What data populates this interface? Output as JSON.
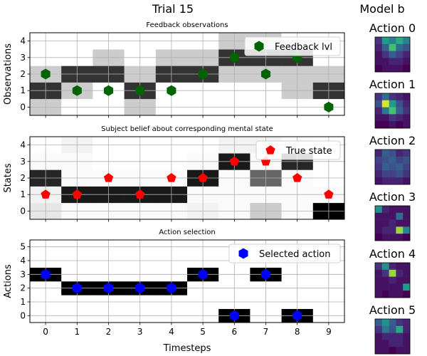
{
  "figure": {
    "title": "Trial 15",
    "side_title": "Model b"
  },
  "chart_data": [
    {
      "type": "heatmap",
      "title": "Feedback observations",
      "xlabel": "",
      "ylabel": "Observations",
      "x": [
        0,
        1,
        2,
        3,
        4,
        5,
        6,
        7,
        8,
        9
      ],
      "yticks": [
        0,
        1,
        2,
        3,
        4
      ],
      "ylim": [
        -0.5,
        4.5
      ],
      "grid": true,
      "colormap": "gray_r",
      "matrix": [
        [
          0.2,
          0.0,
          0.0,
          0.2,
          0.0,
          0.0,
          0.0,
          0.0,
          0.0,
          0.0
        ],
        [
          0.8,
          0.2,
          0.0,
          0.8,
          0.0,
          0.0,
          0.0,
          0.0,
          0.2,
          0.8
        ],
        [
          0.2,
          0.8,
          0.8,
          0.2,
          0.8,
          0.8,
          0.2,
          0.2,
          0.2,
          0.2
        ],
        [
          0.0,
          0.0,
          0.2,
          0.0,
          0.2,
          0.2,
          0.8,
          0.8,
          0.8,
          0.0
        ],
        [
          0.0,
          0.0,
          0.0,
          0.0,
          0.0,
          0.0,
          0.2,
          0.2,
          0.0,
          0.0
        ]
      ],
      "series": [
        {
          "name": "Feedback lvl",
          "marker": "hexagon",
          "color": "#006400",
          "y": [
            2,
            1,
            1,
            1,
            1,
            2,
            3,
            2,
            3,
            0
          ]
        }
      ],
      "legend_position": "upper-right"
    },
    {
      "type": "heatmap",
      "title": "Subject belief about corresponding mental state",
      "xlabel": "",
      "ylabel": "States",
      "x": [
        0,
        1,
        2,
        3,
        4,
        5,
        6,
        7,
        8,
        9
      ],
      "yticks": [
        0,
        1,
        2,
        3,
        4
      ],
      "ylim": [
        -0.5,
        4.5
      ],
      "grid": true,
      "colormap": "gray_r",
      "matrix": [
        [
          0.1,
          0.02,
          0.02,
          0.02,
          0.02,
          0.05,
          0.02,
          0.2,
          0.02,
          1.0
        ],
        [
          0.05,
          0.9,
          0.9,
          0.9,
          0.9,
          0.02,
          0.02,
          0.02,
          0.02,
          0.02
        ],
        [
          0.85,
          0.02,
          0.02,
          0.02,
          0.02,
          0.9,
          0.02,
          0.6,
          0.02,
          0.0
        ],
        [
          0.02,
          0.02,
          0.0,
          0.0,
          0.0,
          0.02,
          0.9,
          0.02,
          0.85,
          0.0
        ],
        [
          0.0,
          0.05,
          0.0,
          0.0,
          0.0,
          0.0,
          0.05,
          0.05,
          0.02,
          0.0
        ]
      ],
      "series": [
        {
          "name": "True state",
          "marker": "pentagon",
          "color": "#ff0000",
          "y": [
            1,
            1,
            2,
            1,
            2,
            2,
            3,
            3,
            2,
            1
          ]
        }
      ],
      "legend_position": "upper-right"
    },
    {
      "type": "heatmap",
      "title": "Action selection",
      "xlabel": "Timesteps",
      "ylabel": "Actions",
      "x": [
        0,
        1,
        2,
        3,
        4,
        5,
        6,
        7,
        8,
        9
      ],
      "yticks": [
        0,
        1,
        2,
        3,
        4,
        5
      ],
      "ylim": [
        -0.5,
        5.5
      ],
      "grid": true,
      "colormap": "gray_r",
      "matrix": [
        [
          0,
          0,
          0,
          0,
          0,
          0,
          1,
          0,
          1,
          0
        ],
        [
          0,
          0,
          0,
          0,
          0,
          0,
          0,
          0,
          0,
          0
        ],
        [
          0,
          1,
          1,
          1,
          1,
          0,
          0,
          0,
          0,
          0
        ],
        [
          1,
          0,
          0,
          0,
          0,
          1,
          0,
          1,
          0,
          0
        ],
        [
          0,
          0,
          0,
          0,
          0,
          0,
          0,
          0,
          0,
          0
        ],
        [
          0,
          0,
          0,
          0,
          0,
          0,
          0,
          0,
          0,
          0
        ]
      ],
      "series": [
        {
          "name": "Selected action",
          "marker": "hexagon",
          "color": "#0000ff",
          "y": [
            3,
            2,
            2,
            2,
            2,
            3,
            0,
            3,
            0,
            null
          ]
        }
      ],
      "legend_position": "upper-right"
    }
  ],
  "model_b": {
    "colormap": "viridis",
    "panels": [
      {
        "title": "Action 0",
        "matrix": [
          [
            0.15,
            0.55,
            0.45,
            0.6,
            0.45
          ],
          [
            0.1,
            0.3,
            0.7,
            0.35,
            0.25
          ],
          [
            0.05,
            0.15,
            0.3,
            0.2,
            0.1
          ],
          [
            0.05,
            0.05,
            0.1,
            0.1,
            0.05
          ],
          [
            0.0,
            0.05,
            0.05,
            0.05,
            0.0
          ]
        ]
      },
      {
        "title": "Action 1",
        "matrix": [
          [
            0.15,
            0.35,
            0.15,
            0.1,
            0.05
          ],
          [
            0.25,
            0.95,
            0.55,
            0.25,
            0.1
          ],
          [
            0.1,
            0.4,
            0.7,
            0.3,
            0.15
          ],
          [
            0.05,
            0.05,
            0.15,
            0.1,
            0.05
          ],
          [
            0.0,
            0.0,
            0.05,
            0.0,
            0.05
          ]
        ]
      },
      {
        "title": "Action 2",
        "matrix": [
          [
            0.1,
            0.3,
            0.25,
            0.1,
            0.15
          ],
          [
            0.2,
            0.25,
            0.3,
            0.2,
            0.25
          ],
          [
            0.15,
            0.3,
            0.25,
            0.3,
            0.2
          ],
          [
            0.1,
            0.2,
            0.2,
            0.25,
            0.15
          ],
          [
            0.05,
            0.1,
            0.1,
            0.1,
            0.05
          ]
        ]
      },
      {
        "title": "Action 3",
        "matrix": [
          [
            0.5,
            0.1,
            0.05,
            0.05,
            0.05
          ],
          [
            0.05,
            0.05,
            0.05,
            0.35,
            0.05
          ],
          [
            0.05,
            0.05,
            0.1,
            0.05,
            0.05
          ],
          [
            0.05,
            0.1,
            0.1,
            0.85,
            0.45
          ],
          [
            0.0,
            0.05,
            0.05,
            0.05,
            0.0
          ]
        ]
      },
      {
        "title": "Action 4",
        "matrix": [
          [
            0.15,
            0.5,
            0.1,
            0.05,
            0.05
          ],
          [
            0.05,
            0.15,
            0.85,
            0.1,
            0.05
          ],
          [
            0.05,
            0.05,
            0.1,
            0.05,
            0.05
          ],
          [
            0.05,
            0.05,
            0.05,
            0.05,
            0.55
          ],
          [
            0.05,
            0.0,
            0.05,
            0.05,
            0.0
          ]
        ]
      },
      {
        "title": "Action 5",
        "matrix": [
          [
            0.3,
            0.5,
            0.3,
            0.15,
            0.1
          ],
          [
            0.15,
            0.4,
            0.25,
            0.6,
            0.1
          ],
          [
            0.05,
            0.1,
            0.1,
            0.1,
            0.05
          ],
          [
            0.05,
            0.05,
            0.1,
            0.1,
            0.05
          ],
          [
            0.05,
            0.05,
            0.0,
            0.05,
            0.05
          ]
        ]
      }
    ]
  }
}
